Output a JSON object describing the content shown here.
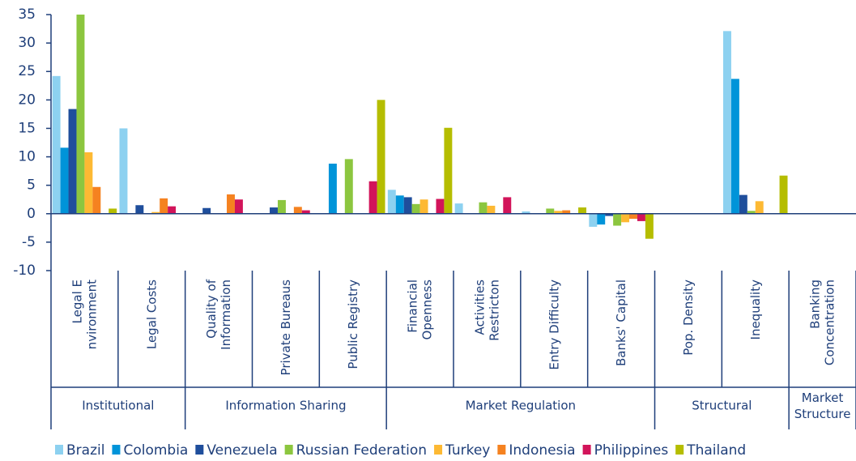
{
  "chart_data": {
    "type": "bar",
    "groups": [
      {
        "name": "Institutional",
        "categories": [
          "Legal E nvironment",
          "Legal Costs"
        ]
      },
      {
        "name": "Information Sharing",
        "categories": [
          "Quality of Information",
          "Private Bureaus",
          "Public Registry"
        ]
      },
      {
        "name": "Market Regulation",
        "categories": [
          "Financial Openness",
          "Activities Restricton",
          "Entry Difficulty",
          "Banks' Capital"
        ]
      },
      {
        "name": "Structural",
        "categories": [
          "Pop. Density",
          "Inequality"
        ]
      },
      {
        "name": "Market Structure",
        "categories": [
          "Banking Concentration"
        ]
      }
    ],
    "series": [
      {
        "name": "Brazil",
        "color": "#8dd1f0",
        "values": [
          24.2,
          15,
          0,
          0,
          0,
          4.2,
          1.8,
          0.4,
          -2.3,
          0,
          32.1,
          0
        ]
      },
      {
        "name": "Colombia",
        "color": "#0094d9",
        "values": [
          11.6,
          0,
          0,
          0,
          8.8,
          3.2,
          0,
          0,
          -1.9,
          0,
          23.7,
          0
        ]
      },
      {
        "name": "Venezuela",
        "color": "#1f4e9c",
        "values": [
          18.4,
          1.5,
          1.0,
          1.1,
          0,
          2.9,
          0,
          0,
          -0.4,
          0,
          3.3,
          0
        ]
      },
      {
        "name": "Russian Federation",
        "color": "#8cc63f",
        "values": [
          35,
          0,
          0,
          2.4,
          9.6,
          1.7,
          2.0,
          0.9,
          -2.1,
          0,
          0.5,
          0
        ]
      },
      {
        "name": "Turkey",
        "color": "#fdb933",
        "values": [
          10.8,
          0.3,
          0,
          0,
          0,
          2.5,
          1.4,
          0.5,
          -1.5,
          0,
          2.2,
          0
        ]
      },
      {
        "name": "Indonesia",
        "color": "#f58220",
        "values": [
          4.7,
          2.7,
          3.4,
          1.2,
          0,
          0,
          0,
          0.6,
          -0.9,
          0,
          0,
          0
        ]
      },
      {
        "name": "Philippines",
        "color": "#d2145a",
        "values": [
          0,
          1.3,
          2.5,
          0.6,
          5.7,
          2.6,
          2.9,
          0,
          -1.3,
          0,
          0,
          0
        ]
      },
      {
        "name": "Thailand",
        "color": "#b5bd00",
        "values": [
          0.9,
          0,
          0,
          0,
          20,
          15.1,
          0,
          1.1,
          -4.4,
          0,
          6.7,
          0
        ]
      }
    ],
    "ylim": [
      -10,
      35
    ],
    "yticks": [
      -10,
      -5,
      0,
      5,
      10,
      15,
      20,
      25,
      30,
      35
    ]
  }
}
